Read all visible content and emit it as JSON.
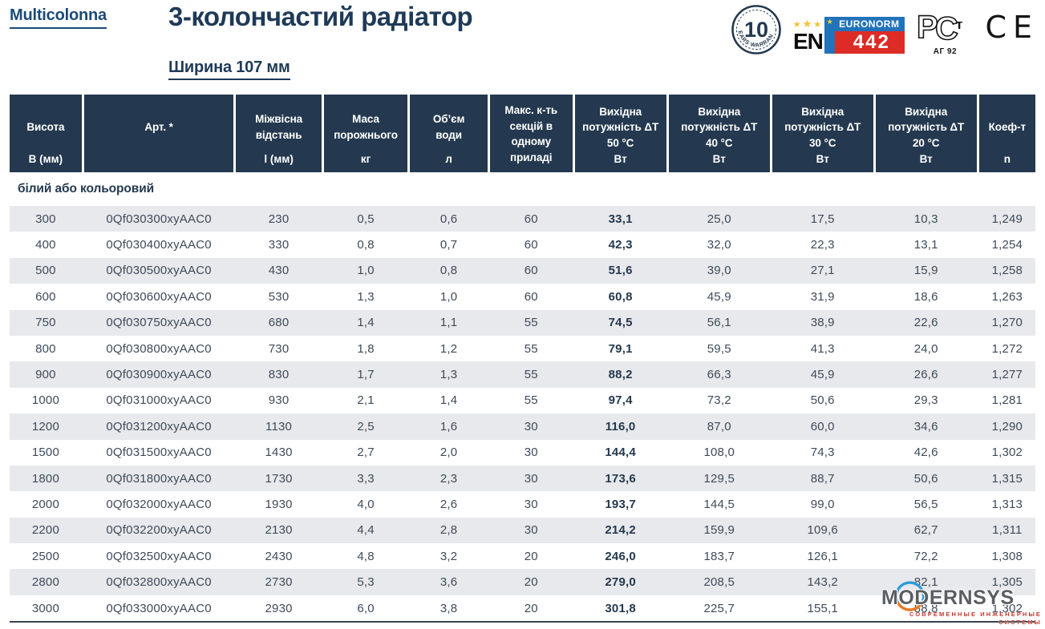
{
  "brand": {
    "logo": "Multicolonna"
  },
  "header": {
    "title": "3-колончастий радіатор",
    "subtitle": "Ширина 107 мм"
  },
  "badges": {
    "warranty": {
      "number": "10",
      "text": "YEARS WARRANTY"
    },
    "euronorm": {
      "en": "EN",
      "stars": "★ ★ ★",
      "star": "★",
      "label": "EURONORM",
      "number": "442"
    },
    "gost": {
      "mark": "РСт",
      "code": "АГ 92"
    },
    "ce": "CE"
  },
  "table": {
    "columns": [
      {
        "label": "Висота",
        "unit": "В (мм)"
      },
      {
        "label": "Арт. *",
        "unit": ""
      },
      {
        "label": "Міжвісна\nвідстань",
        "unit": "l (мм)"
      },
      {
        "label": "Маса\nпорожнього",
        "unit": "кг"
      },
      {
        "label": "Об’єм\nводи",
        "unit": "л"
      },
      {
        "label": "Макс. к-ть\nсекцій в\nодному\nприладі",
        "unit": ""
      },
      {
        "label": "Вихідна\nпотужність ΔT\n50 °C",
        "unit": "Вт"
      },
      {
        "label": "Вихідна\nпотужність ΔT\n40 °C",
        "unit": "Вт"
      },
      {
        "label": "Вихідна\nпотужність ΔT\n30 °C",
        "unit": "Вт"
      },
      {
        "label": "Вихідна\nпотужність ΔT\n20 °C",
        "unit": "Вт"
      },
      {
        "label": "Коеф-т",
        "unit": "n"
      }
    ],
    "section_label": "білий або кольоровий",
    "rows": [
      [
        "300",
        "0Qf030300xyAAC0",
        "230",
        "0,5",
        "0,6",
        "60",
        "33,1",
        "25,0",
        "17,5",
        "10,3",
        "1,249"
      ],
      [
        "400",
        "0Qf030400xyAAC0",
        "330",
        "0,8",
        "0,7",
        "60",
        "42,3",
        "32,0",
        "22,3",
        "13,1",
        "1,254"
      ],
      [
        "500",
        "0Qf030500xyAAC0",
        "430",
        "1,0",
        "0,8",
        "60",
        "51,6",
        "39,0",
        "27,1",
        "15,9",
        "1,258"
      ],
      [
        "600",
        "0Qf030600xyAAC0",
        "530",
        "1,3",
        "1,0",
        "60",
        "60,8",
        "45,9",
        "31,9",
        "18,6",
        "1,263"
      ],
      [
        "750",
        "0Qf030750xyAAC0",
        "680",
        "1,4",
        "1,1",
        "55",
        "74,5",
        "56,1",
        "38,9",
        "22,6",
        "1,270"
      ],
      [
        "800",
        "0Qf030800xyAAC0",
        "730",
        "1,8",
        "1,2",
        "55",
        "79,1",
        "59,5",
        "41,3",
        "24,0",
        "1,272"
      ],
      [
        "900",
        "0Qf030900xyAAC0",
        "830",
        "1,7",
        "1,3",
        "55",
        "88,2",
        "66,3",
        "45,9",
        "26,6",
        "1,277"
      ],
      [
        "1000",
        "0Qf031000xyAAC0",
        "930",
        "2,1",
        "1,4",
        "55",
        "97,4",
        "73,2",
        "50,6",
        "29,3",
        "1,281"
      ],
      [
        "1200",
        "0Qf031200xyAAC0",
        "1130",
        "2,5",
        "1,6",
        "30",
        "116,0",
        "87,0",
        "60,0",
        "34,6",
        "1,290"
      ],
      [
        "1500",
        "0Qf031500xyAAC0",
        "1430",
        "2,7",
        "2,0",
        "30",
        "144,4",
        "108,0",
        "74,3",
        "42,6",
        "1,302"
      ],
      [
        "1800",
        "0Qf031800xyAAC0",
        "1730",
        "3,3",
        "2,3",
        "30",
        "173,6",
        "129,5",
        "88,7",
        "50,6",
        "1,315"
      ],
      [
        "2000",
        "0Qf032000xyAAC0",
        "1930",
        "4,0",
        "2,6",
        "30",
        "193,7",
        "144,5",
        "99,0",
        "56,5",
        "1,313"
      ],
      [
        "2200",
        "0Qf032200xyAAC0",
        "2130",
        "4,4",
        "2,8",
        "30",
        "214,2",
        "159,9",
        "109,6",
        "62,7",
        "1,311"
      ],
      [
        "2500",
        "0Qf032500xyAAC0",
        "2430",
        "4,8",
        "3,2",
        "20",
        "246,0",
        "183,7",
        "126,1",
        "72,2",
        "1,308"
      ],
      [
        "2800",
        "0Qf032800xyAAC0",
        "2730",
        "5,3",
        "3,6",
        "20",
        "279,0",
        "208,5",
        "143,2",
        "82,1",
        "1,305"
      ],
      [
        "3000",
        "0Qf033000xyAAC0",
        "2930",
        "6,0",
        "3,8",
        "20",
        "301,8",
        "225,7",
        "155,1",
        "88,8",
        "1,302"
      ]
    ]
  },
  "watermark": {
    "name": "MODERNSYS",
    "subtitle": "СОВРЕМЕННЫЕ ИНЖЕНЕРНЫЕ СИСТЕМЫ"
  },
  "colors": {
    "navy": "#24394f",
    "title_navy": "#1e3a58",
    "row_stripe": "#e8e9ec",
    "data_text": "#3e4a59",
    "euronorm_blue": "#2273ba",
    "euronorm_red": "#dd2b25",
    "star_yellow": "#f2c230",
    "watermark_gray": "#5b5e63",
    "watermark_red": "#c23a31",
    "watermark_blue": "#2f9bd8",
    "watermark_orange": "#e87722"
  }
}
